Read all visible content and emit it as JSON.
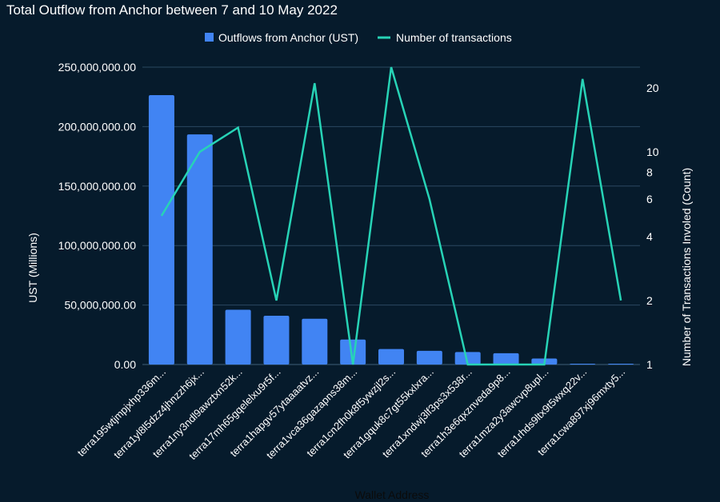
{
  "chart_data": {
    "type": "bar",
    "title": "Total Outflow from Anchor between 7 and 10 May 2022",
    "xlabel": "Wallet Address",
    "ylabel": "UST (Millions)",
    "y2label": "Number of Transactions Involed (Count)",
    "ylim": [
      0,
      250000000
    ],
    "y2_scale": "log",
    "y2lim": [
      1,
      25
    ],
    "y_ticks": [
      "0.00",
      "50,000,000.00",
      "100,000,000.00",
      "150,000,000.00",
      "200,000,000.00",
      "250,000,000.00"
    ],
    "y2_ticks": [
      "1",
      "2",
      "4",
      "6",
      "8",
      "10",
      "20"
    ],
    "legend_position": "top-center",
    "grid": true,
    "categories": [
      "terra195wtjmpjxhp336m...",
      "terra1yl8l5dzz4jhnzzh6jx...",
      "terra1ny3ndl9awztxn52k...",
      "terra17mh65gqelelxu9r5f...",
      "terra1hapgv57ytaaaatvz...",
      "terra1vca36gazapns38m...",
      "terra1cn2fh0k8f5ywzjl2s...",
      "terra1gquk8c7gt55kxlxra...",
      "terra1xndwj3lf3ps3x538r...",
      "terra1h3e6qxznveda9p8...",
      "terra1mza2y3awcvp8upl...",
      "terra1rhds9ltx9t5wxq22v...",
      "terra1cwa897xj96mxty5..."
    ],
    "series": [
      {
        "name": "Outflows from Anchor (UST)",
        "type": "bar",
        "axis": "left",
        "color": "#4184f3",
        "values": [
          226500000,
          193500000,
          46000000,
          41000000,
          38500000,
          21000000,
          13000000,
          11500000,
          10500000,
          9500000,
          5000000,
          700000,
          300000
        ]
      },
      {
        "name": "Number of transactions",
        "type": "line",
        "axis": "right",
        "color": "#27d3b6",
        "values": [
          5,
          10,
          13,
          2,
          21,
          1,
          25,
          6,
          1,
          1,
          1,
          22,
          2
        ]
      }
    ]
  }
}
